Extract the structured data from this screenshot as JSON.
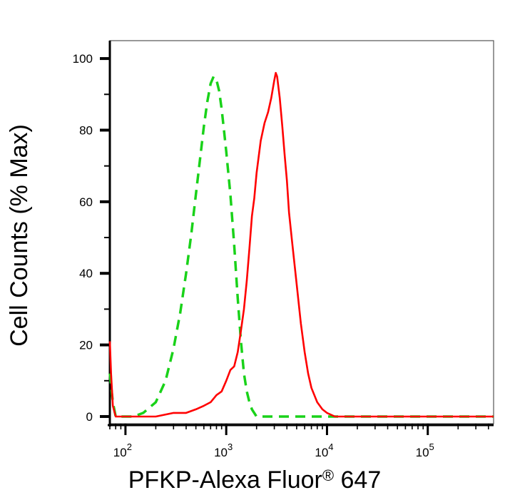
{
  "chart_data": {
    "type": "line",
    "title": "",
    "xlabel": "PFKP-Alexa Fluor",
    "xlabel_mark": "®",
    "xlabel_suffix": " 647",
    "ylabel": "Cell Counts (% Max)",
    "x_scale": "log",
    "xlim": [
      70,
      450000
    ],
    "ylim": [
      -2,
      105
    ],
    "x_ticks": [
      {
        "value": 100,
        "base": "10",
        "exp": "2"
      },
      {
        "value": 1000,
        "base": "10",
        "exp": "3"
      },
      {
        "value": 10000,
        "base": "10",
        "exp": "4"
      },
      {
        "value": 100000,
        "base": "10",
        "exp": "5"
      }
    ],
    "y_ticks": [
      {
        "value": 0,
        "label": "0"
      },
      {
        "value": 20,
        "label": "20"
      },
      {
        "value": 40,
        "label": "40"
      },
      {
        "value": 60,
        "label": "60"
      },
      {
        "value": 80,
        "label": "80"
      },
      {
        "value": 100,
        "label": "100"
      }
    ],
    "legend": "none",
    "grid": false,
    "series": [
      {
        "style": "dashed",
        "color": "#19d219",
        "x": [
          70,
          75,
          80,
          90,
          100,
          120,
          150,
          200,
          250,
          300,
          350,
          400,
          450,
          500,
          550,
          600,
          650,
          700,
          750,
          800,
          850,
          900,
          950,
          1000,
          1100,
          1200,
          1300,
          1400,
          1500,
          1600,
          1700,
          1800,
          2000,
          2200,
          2500,
          3000,
          5000,
          10000,
          100000,
          450000
        ],
        "y": [
          12,
          4,
          0,
          0,
          0,
          0,
          1,
          4,
          10,
          19,
          29,
          40,
          51,
          62,
          72,
          81,
          88,
          93,
          95,
          94,
          91,
          86,
          80,
          74,
          62,
          48,
          33,
          21,
          12,
          7,
          4,
          2,
          0,
          0,
          0,
          0,
          0,
          0,
          0,
          0
        ]
      },
      {
        "style": "solid",
        "color": "#ff0000",
        "x": [
          70,
          72,
          75,
          80,
          90,
          100,
          150,
          200,
          300,
          400,
          500,
          600,
          700,
          800,
          900,
          1000,
          1100,
          1200,
          1300,
          1400,
          1500,
          1600,
          1700,
          1800,
          1900,
          2000,
          2200,
          2400,
          2600,
          2800,
          3000,
          3100,
          3200,
          3400,
          3600,
          3800,
          4000,
          4200,
          4500,
          5000,
          5500,
          6000,
          6500,
          7000,
          8000,
          9000,
          10000,
          12000,
          15000,
          20000,
          50000,
          100000,
          450000
        ],
        "y": [
          21,
          12,
          3,
          0,
          0,
          0,
          0,
          0,
          1,
          1,
          2,
          3,
          4,
          6,
          7,
          10,
          13,
          14,
          18,
          24,
          30,
          38,
          47,
          56,
          61,
          68,
          77,
          82,
          85,
          89,
          94,
          96,
          95,
          89,
          81,
          73,
          66,
          57,
          49,
          37,
          26,
          18,
          12,
          8,
          4,
          2,
          1,
          0,
          0,
          0,
          0,
          0,
          0
        ]
      }
    ]
  }
}
